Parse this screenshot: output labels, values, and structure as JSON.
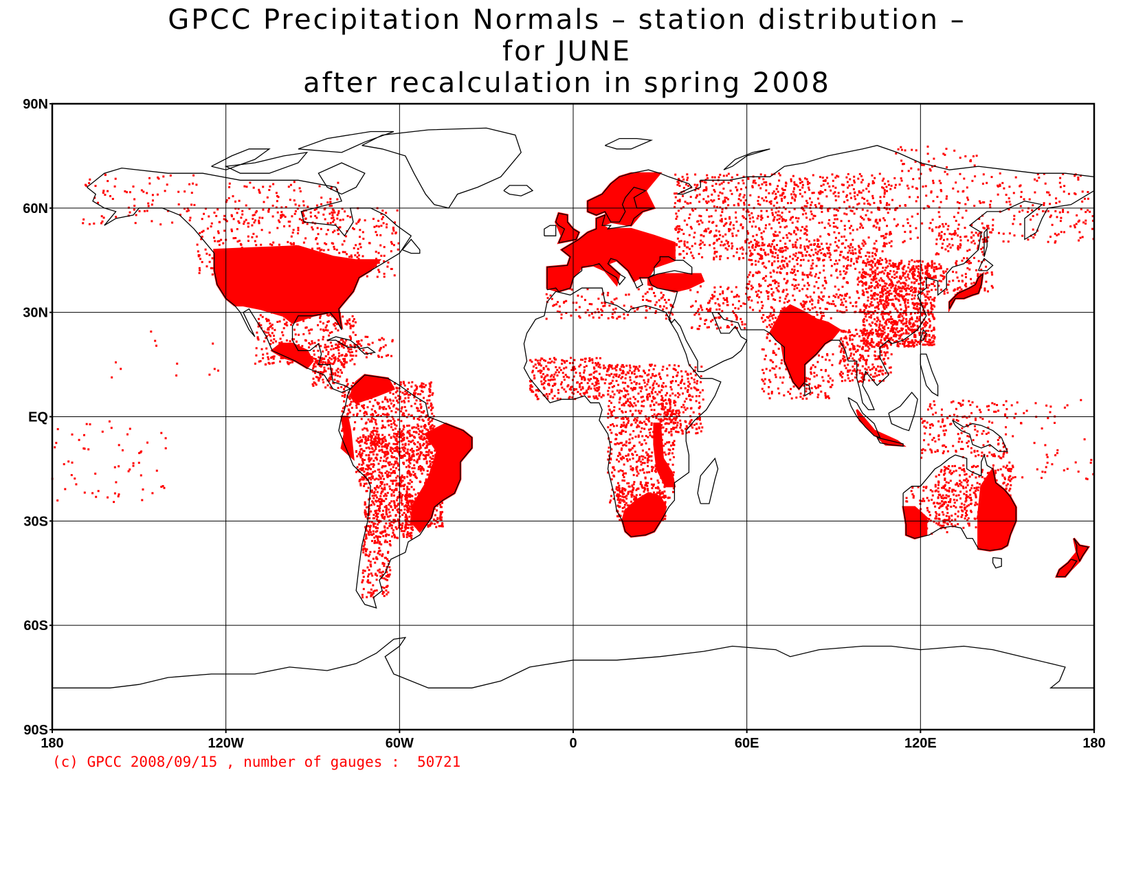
{
  "title": {
    "line1": "GPCC Precipitation Normals – station distribution –",
    "line2": "for JUNE",
    "line3": "after recalculation in spring 2008"
  },
  "map": {
    "projection": "equirectangular",
    "lon_range": [
      -180,
      180
    ],
    "lat_range": [
      -90,
      90
    ],
    "gridlines": {
      "lon": [
        -120,
        -60,
        0,
        60,
        120
      ],
      "lat": [
        -60,
        -30,
        0,
        30,
        60
      ]
    },
    "lat_tick_labels": [
      {
        "lat": 90,
        "text": "90N"
      },
      {
        "lat": 60,
        "text": "60N"
      },
      {
        "lat": 30,
        "text": "30N"
      },
      {
        "lat": 0,
        "text": "EQ"
      },
      {
        "lat": -30,
        "text": "30S"
      },
      {
        "lat": -60,
        "text": "60S"
      },
      {
        "lat": -90,
        "text": "90S"
      }
    ],
    "lon_tick_labels": [
      {
        "lon": -180,
        "text": "180"
      },
      {
        "lon": -120,
        "text": "120W"
      },
      {
        "lon": -60,
        "text": "60W"
      },
      {
        "lon": 0,
        "text": "0"
      },
      {
        "lon": 60,
        "text": "60E"
      },
      {
        "lon": 120,
        "text": "120E"
      },
      {
        "lon": 180,
        "text": "180"
      }
    ],
    "station_color": "#ff0000",
    "coastline_color": "#000000",
    "dense_station_regions": [
      {
        "name": "USA",
        "lon": [
          -125,
          -68
        ],
        "lat": [
          25,
          49
        ]
      },
      {
        "name": "Europe",
        "lon": [
          -10,
          35
        ],
        "lat": [
          36,
          70
        ]
      },
      {
        "name": "India",
        "lon": [
          68,
          90
        ],
        "lat": [
          8,
          32
        ]
      },
      {
        "name": "South Africa",
        "lon": [
          17,
          32
        ],
        "lat": [
          -34,
          -22
        ]
      },
      {
        "name": "East Australia",
        "lon": [
          140,
          153
        ],
        "lat": [
          -38,
          -12
        ]
      },
      {
        "name": "SW Australia",
        "lon": [
          114,
          124
        ],
        "lat": [
          -35,
          -26
        ]
      },
      {
        "name": "East Brazil",
        "lon": [
          -52,
          -35
        ],
        "lat": [
          -25,
          -5
        ]
      },
      {
        "name": "Japan",
        "lon": [
          130,
          142
        ],
        "lat": [
          31,
          43
        ]
      },
      {
        "name": "New Zealand",
        "lon": [
          167,
          178
        ],
        "lat": [
          -46,
          -35
        ]
      }
    ]
  },
  "credit": {
    "text": "(c) GPCC 2008/09/15 , number of gauges :  50721",
    "number_of_gauges": 50721
  }
}
